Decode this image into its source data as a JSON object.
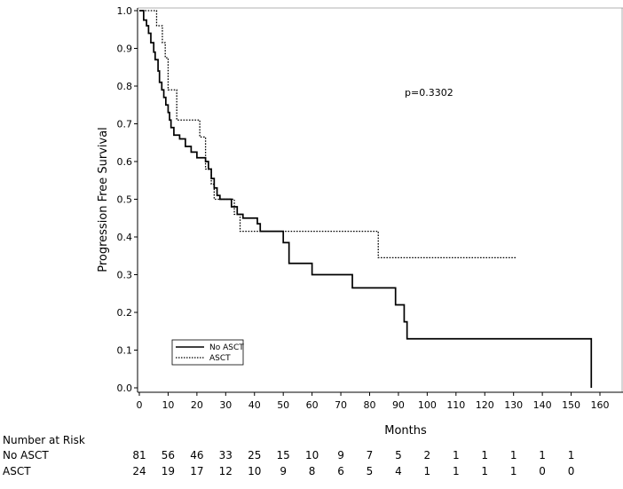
{
  "chart_data": {
    "type": "line",
    "subtype": "kaplan-meier step",
    "title": "",
    "xlabel": "Months",
    "ylabel": "Progression Free Survival",
    "xlim": [
      0,
      165
    ],
    "ylim": [
      0,
      1.0
    ],
    "xticks": [
      "0",
      "10",
      "20",
      "30",
      "40",
      "50",
      "60",
      "70",
      "80",
      "90",
      "100",
      "110",
      "120",
      "130",
      "140",
      "150",
      "160"
    ],
    "yticks": [
      "0.0",
      "0.1",
      "0.2",
      "0.3",
      "0.4",
      "0.5",
      "0.6",
      "0.7",
      "0.8",
      "0.9",
      "1.0"
    ],
    "annotation": "p=0.3302",
    "legend_position": "bottom-left",
    "series": [
      {
        "name": "No ASCT",
        "style": "solid",
        "color": "#000000",
        "points": [
          [
            0,
            1.0
          ],
          [
            1.5,
            0.975
          ],
          [
            2.5,
            0.96
          ],
          [
            3.2,
            0.94
          ],
          [
            4,
            0.915
          ],
          [
            5,
            0.89
          ],
          [
            5.5,
            0.87
          ],
          [
            6.5,
            0.84
          ],
          [
            7,
            0.81
          ],
          [
            7.8,
            0.79
          ],
          [
            8.5,
            0.77
          ],
          [
            9.2,
            0.75
          ],
          [
            10,
            0.73
          ],
          [
            10.5,
            0.71
          ],
          [
            11,
            0.69
          ],
          [
            12,
            0.67
          ],
          [
            14,
            0.66
          ],
          [
            16,
            0.64
          ],
          [
            18,
            0.625
          ],
          [
            20,
            0.61
          ],
          [
            23,
            0.6
          ],
          [
            24,
            0.58
          ],
          [
            25,
            0.555
          ],
          [
            26,
            0.53
          ],
          [
            27,
            0.51
          ],
          [
            28,
            0.5
          ],
          [
            32,
            0.48
          ],
          [
            34,
            0.46
          ],
          [
            36,
            0.45
          ],
          [
            41,
            0.435
          ],
          [
            42,
            0.415
          ],
          [
            50,
            0.385
          ],
          [
            52,
            0.33
          ],
          [
            60,
            0.3
          ],
          [
            74,
            0.265
          ],
          [
            89,
            0.22
          ],
          [
            92,
            0.175
          ],
          [
            93,
            0.13
          ],
          [
            157,
            0.13
          ],
          [
            157,
            0.0
          ]
        ]
      },
      {
        "name": "ASCT",
        "style": "dotted",
        "color": "#000000",
        "points": [
          [
            0,
            1.0
          ],
          [
            6,
            0.96
          ],
          [
            8,
            0.915
          ],
          [
            9,
            0.875
          ],
          [
            10,
            0.79
          ],
          [
            13,
            0.71
          ],
          [
            21,
            0.665
          ],
          [
            23,
            0.58
          ],
          [
            25,
            0.54
          ],
          [
            26,
            0.5
          ],
          [
            33,
            0.46
          ],
          [
            35,
            0.415
          ],
          [
            83,
            0.345
          ],
          [
            131,
            0.345
          ]
        ]
      }
    ]
  },
  "risk_table": {
    "title": "Number at Risk",
    "rows": [
      {
        "label": "No ASCT",
        "values": [
          "81",
          "56",
          "46",
          "33",
          "25",
          "15",
          "10",
          "9",
          "7",
          "5",
          "2",
          "1",
          "1",
          "1",
          "1",
          "1"
        ]
      },
      {
        "label": "ASCT",
        "values": [
          "24",
          "19",
          "17",
          "12",
          "10",
          "9",
          "8",
          "6",
          "5",
          "4",
          "1",
          "1",
          "1",
          "1",
          "0",
          "0"
        ]
      }
    ]
  }
}
